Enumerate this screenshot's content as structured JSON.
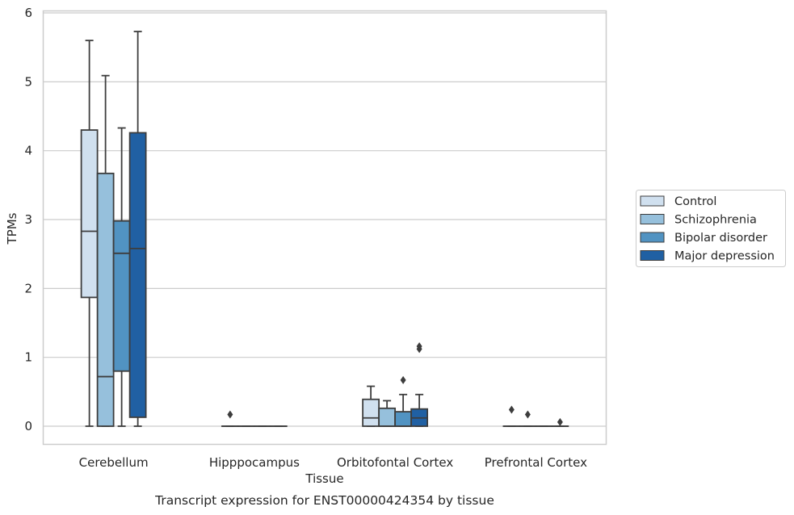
{
  "chart_data": {
    "type": "box",
    "xlabel": "Tissue",
    "ylabel": "TPMs",
    "caption": "Transcript expression for ENST00000424354 by tissue",
    "categories": [
      "Cerebellum",
      "Hipppocampus",
      "Orbitofontal Cortex",
      "Prefrontal Cortex"
    ],
    "ylim": [
      -0.27,
      6.03
    ],
    "yticks": [
      0,
      1,
      2,
      3,
      4,
      5,
      6
    ],
    "grid": "horizontal",
    "legend_position": "right",
    "series": [
      {
        "name": "Control",
        "color": "#d0e0ef",
        "boxes": [
          {
            "min": 0.0,
            "q1": 1.87,
            "median": 2.83,
            "q3": 4.3,
            "max": 5.6,
            "outliers": []
          },
          {
            "min": 0.0,
            "q1": 0.0,
            "median": 0.0,
            "q3": 0.0,
            "max": 0.0,
            "outliers": [
              0.17
            ]
          },
          {
            "min": 0.0,
            "q1": 0.0,
            "median": 0.12,
            "q3": 0.39,
            "max": 0.58,
            "outliers": []
          },
          {
            "min": 0.0,
            "q1": 0.0,
            "median": 0.0,
            "q3": 0.0,
            "max": 0.0,
            "outliers": [
              0.24
            ]
          }
        ]
      },
      {
        "name": "Schizophrenia",
        "color": "#96c0dc",
        "boxes": [
          {
            "min": 0.0,
            "q1": 0.0,
            "median": 0.72,
            "q3": 3.67,
            "max": 5.09,
            "outliers": []
          },
          {
            "min": 0.0,
            "q1": 0.0,
            "median": 0.0,
            "q3": 0.0,
            "max": 0.0,
            "outliers": []
          },
          {
            "min": 0.0,
            "q1": 0.0,
            "median": 0.0,
            "q3": 0.26,
            "max": 0.37,
            "outliers": []
          },
          {
            "min": 0.0,
            "q1": 0.0,
            "median": 0.0,
            "q3": 0.0,
            "max": 0.0,
            "outliers": [
              0.17
            ]
          }
        ]
      },
      {
        "name": "Bipolar disorder",
        "color": "#5193c2",
        "boxes": [
          {
            "min": 0.0,
            "q1": 0.8,
            "median": 2.51,
            "q3": 2.98,
            "max": 4.33,
            "outliers": []
          },
          {
            "min": 0.0,
            "q1": 0.0,
            "median": 0.0,
            "q3": 0.0,
            "max": 0.0,
            "outliers": []
          },
          {
            "min": 0.0,
            "q1": 0.0,
            "median": 0.0,
            "q3": 0.21,
            "max": 0.46,
            "outliers": [
              0.67
            ]
          },
          {
            "min": 0.0,
            "q1": 0.0,
            "median": 0.0,
            "q3": 0.0,
            "max": 0.0,
            "outliers": []
          }
        ]
      },
      {
        "name": "Major depression",
        "color": "#2060a3",
        "boxes": [
          {
            "min": 0.0,
            "q1": 0.13,
            "median": 2.58,
            "q3": 4.26,
            "max": 5.73,
            "outliers": []
          },
          {
            "min": 0.0,
            "q1": 0.0,
            "median": 0.0,
            "q3": 0.0,
            "max": 0.0,
            "outliers": []
          },
          {
            "min": 0.0,
            "q1": 0.0,
            "median": 0.12,
            "q3": 0.25,
            "max": 0.46,
            "outliers": [
              1.12,
              1.16
            ]
          },
          {
            "min": 0.0,
            "q1": 0.0,
            "median": 0.0,
            "q3": 0.0,
            "max": 0.0,
            "outliers": [
              0.06
            ]
          }
        ]
      }
    ]
  }
}
